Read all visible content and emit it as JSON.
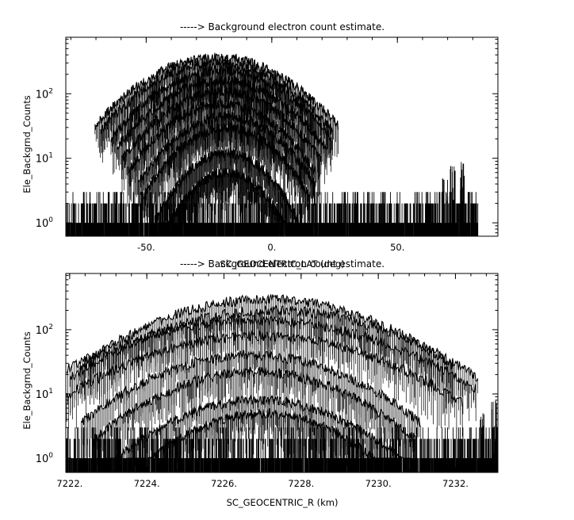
{
  "figure": {
    "background": "#ffffff",
    "ink": "#000000"
  },
  "chart_data": [
    {
      "type": "line",
      "title": "-----> Background electron count estimate.",
      "xlabel": "SC_GEOCENTRIC_LAT (deg)",
      "ylabel": "Ele_Backgrnd_Counts",
      "x_tick_labels": [
        "-50.",
        "0.",
        "50."
      ],
      "x_tick_values": [
        -50,
        0,
        50
      ],
      "y_tick_labels": [
        "10",
        "10",
        "10"
      ],
      "y_tick_exponents": [
        "0",
        "1",
        "2"
      ],
      "y_tick_values": [
        1,
        10,
        100
      ],
      "xlim": [
        -82,
        90
      ],
      "ylim": [
        0.62,
        750
      ],
      "y_scale": "log",
      "grid": false,
      "legend": "none",
      "data_x_range": [
        -82,
        82
      ],
      "noise_floor_levels": [
        1,
        2,
        3
      ],
      "series": [
        {
          "peak_x": -22,
          "peak_y": 360,
          "width": 22
        },
        {
          "peak_x": -22,
          "peak_y": 300,
          "width": 21
        },
        {
          "peak_x": -20,
          "peak_y": 230,
          "width": 20
        },
        {
          "peak_x": -20,
          "peak_y": 160,
          "width": 19
        },
        {
          "peak_x": -20,
          "peak_y": 110,
          "width": 18
        },
        {
          "peak_x": -20,
          "peak_y": 70,
          "width": 17
        },
        {
          "peak_x": -18,
          "peak_y": 45,
          "width": 16
        },
        {
          "peak_x": -18,
          "peak_y": 30,
          "width": 15
        },
        {
          "peak_x": -18,
          "peak_y": 12,
          "width": 13
        },
        {
          "peak_x": -18,
          "peak_y": 6,
          "width": 12
        }
      ],
      "noise_bursts": [
        {
          "x": 72,
          "peak_y": 8
        },
        {
          "x": 76,
          "peak_y": 9
        },
        {
          "x": 69,
          "peak_y": 5
        }
      ]
    },
    {
      "type": "line",
      "title": "-----> Background electron count estimate.",
      "xlabel": "SC_GEOCENTRIC_R (km)",
      "ylabel": "Ele_Backgrnd_Counts",
      "x_tick_labels": [
        "7222.",
        "7224.",
        "7226.",
        "7228.",
        "7230.",
        "7232."
      ],
      "x_tick_values": [
        7222,
        7224,
        7226,
        7228,
        7230,
        7232
      ],
      "y_tick_labels": [
        "10",
        "10",
        "10"
      ],
      "y_tick_exponents": [
        "0",
        "1",
        "2"
      ],
      "y_tick_values": [
        1,
        10,
        100
      ],
      "xlim": [
        7221.9,
        7233.1
      ],
      "ylim": [
        0.6,
        750
      ],
      "y_scale": "log",
      "grid": false,
      "legend": "none",
      "data_x_range": [
        7221.9,
        7233.1
      ],
      "noise_floor_levels": [
        1,
        2,
        3
      ],
      "series": [
        {
          "peak_x": 7227.1,
          "peak_y": 300,
          "width": 2.2
        },
        {
          "peak_x": 7227.3,
          "peak_y": 200,
          "width": 2.4
        },
        {
          "peak_x": 7226.8,
          "peak_y": 140,
          "width": 2.6
        },
        {
          "peak_x": 7226.9,
          "peak_y": 80,
          "width": 2.4
        },
        {
          "peak_x": 7226.7,
          "peak_y": 40,
          "width": 2.0
        },
        {
          "peak_x": 7226.8,
          "peak_y": 22,
          "width": 1.9
        },
        {
          "peak_x": 7226.9,
          "peak_y": 8,
          "width": 1.8
        },
        {
          "peak_x": 7227.0,
          "peak_y": 5,
          "width": 1.6
        }
      ],
      "noise_bursts": [
        {
          "x": 7233.0,
          "peak_y": 8
        },
        {
          "x": 7232.7,
          "peak_y": 5
        }
      ]
    }
  ]
}
